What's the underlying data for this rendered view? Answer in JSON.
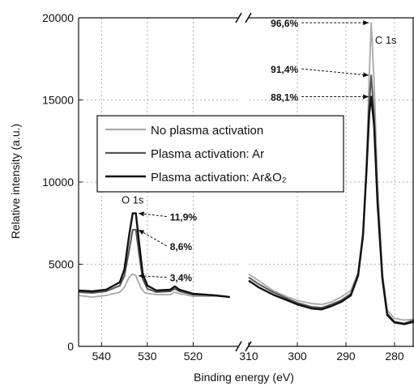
{
  "chart_data": {
    "type": "line",
    "xlabel": "Binding energy (eV)",
    "ylabel": "Relative intensity (a.u.)",
    "ylim": [
      0,
      20000
    ],
    "yticks": [
      0,
      5000,
      10000,
      15000,
      20000
    ],
    "x_axis": "reversed, broken",
    "x_segments": [
      {
        "range": [
          545,
          510
        ],
        "ticks": [
          540,
          530,
          520
        ]
      },
      {
        "range": [
          310,
          276
        ],
        "ticks": [
          310,
          300,
          290,
          280
        ]
      }
    ],
    "grid": "dashed",
    "legend_placement": "center-left",
    "series": [
      {
        "name": "No plasma activation",
        "color": "#a8a8a8",
        "segments": [
          [
            [
              545,
              3100
            ],
            [
              542,
              3000
            ],
            [
              539,
              3100
            ],
            [
              536,
              3300
            ],
            [
              535,
              3600
            ],
            [
              534,
              4200
            ],
            [
              533.2,
              4400
            ],
            [
              532.5,
              4300
            ],
            [
              531.5,
              3600
            ],
            [
              530.5,
              3250
            ],
            [
              528,
              3150
            ],
            [
              525,
              3150
            ],
            [
              524,
              3300
            ],
            [
              523,
              3200
            ],
            [
              520,
              3050
            ],
            [
              515,
              3050
            ],
            [
              512,
              3000
            ]
          ],
          [
            [
              310,
              4400
            ],
            [
              308,
              4000
            ],
            [
              305,
              3400
            ],
            [
              302,
              3000
            ],
            [
              300,
              2800
            ],
            [
              297,
              2600
            ],
            [
              295,
              2550
            ],
            [
              293,
              2700
            ],
            [
              291,
              3000
            ],
            [
              289,
              3400
            ],
            [
              287.5,
              4500
            ],
            [
              286.5,
              7000
            ],
            [
              285.8,
              11000
            ],
            [
              285.2,
              16500
            ],
            [
              284.8,
              19700
            ],
            [
              284.2,
              16000
            ],
            [
              283.5,
              10000
            ],
            [
              282.5,
              4500
            ],
            [
              281.5,
              2200
            ],
            [
              280,
              1700
            ],
            [
              278,
              1600
            ],
            [
              276,
              1650
            ]
          ]
        ]
      },
      {
        "name": "Plasma activation: Ar",
        "color": "#555555",
        "segments": [
          [
            [
              545,
              3300
            ],
            [
              542,
              3250
            ],
            [
              539,
              3350
            ],
            [
              536,
              3700
            ],
            [
              535,
              4300
            ],
            [
              534,
              5800
            ],
            [
              533.2,
              7100
            ],
            [
              532.5,
              7100
            ],
            [
              531.8,
              5600
            ],
            [
              531,
              4100
            ],
            [
              530,
              3500
            ],
            [
              528,
              3300
            ],
            [
              525,
              3350
            ],
            [
              524,
              3500
            ],
            [
              523,
              3350
            ],
            [
              520,
              3150
            ],
            [
              515,
              3100
            ],
            [
              512,
              3000
            ]
          ],
          [
            [
              310,
              4200
            ],
            [
              308,
              3800
            ],
            [
              305,
              3300
            ],
            [
              302,
              2900
            ],
            [
              300,
              2650
            ],
            [
              297,
              2400
            ],
            [
              295,
              2350
            ],
            [
              293,
              2550
            ],
            [
              291,
              2800
            ],
            [
              289,
              3200
            ],
            [
              287.5,
              4400
            ],
            [
              286.5,
              6800
            ],
            [
              285.8,
              10800
            ],
            [
              285.2,
              14800
            ],
            [
              284.8,
              16500
            ],
            [
              284.2,
              14000
            ],
            [
              283.5,
              9000
            ],
            [
              282.5,
              4200
            ],
            [
              281.5,
              2000
            ],
            [
              280,
              1500
            ],
            [
              278,
              1400
            ],
            [
              276,
              1600
            ]
          ]
        ]
      },
      {
        "name": "Plasma activation: Ar&O₂",
        "color": "#111111",
        "segments": [
          [
            [
              545,
              3400
            ],
            [
              542,
              3350
            ],
            [
              539,
              3450
            ],
            [
              536,
              3900
            ],
            [
              535,
              4700
            ],
            [
              534,
              6700
            ],
            [
              533.2,
              8100
            ],
            [
              532.5,
              8100
            ],
            [
              531.8,
              6300
            ],
            [
              531,
              4400
            ],
            [
              530,
              3700
            ],
            [
              528,
              3400
            ],
            [
              525,
              3450
            ],
            [
              524,
              3650
            ],
            [
              523,
              3450
            ],
            [
              520,
              3200
            ],
            [
              515,
              3100
            ],
            [
              512,
              3000
            ]
          ],
          [
            [
              310,
              4000
            ],
            [
              308,
              3600
            ],
            [
              305,
              3150
            ],
            [
              302,
              2800
            ],
            [
              300,
              2550
            ],
            [
              297,
              2300
            ],
            [
              295,
              2250
            ],
            [
              293,
              2450
            ],
            [
              291,
              2700
            ],
            [
              289,
              3100
            ],
            [
              287.5,
              4300
            ],
            [
              286.5,
              6700
            ],
            [
              285.8,
              10500
            ],
            [
              285.2,
              14200
            ],
            [
              284.8,
              15200
            ],
            [
              284.2,
              13400
            ],
            [
              283.5,
              8700
            ],
            [
              282.5,
              4100
            ],
            [
              281.5,
              1900
            ],
            [
              280,
              1450
            ],
            [
              278,
              1350
            ],
            [
              276,
              1500
            ]
          ]
        ]
      }
    ],
    "peak_labels": [
      {
        "text": "O 1s",
        "x": 532.5,
        "y": 8100
      },
      {
        "text": "C 1s",
        "x": 284.8,
        "y": 19700
      }
    ],
    "annotations": [
      {
        "text": "11,9%",
        "target_x": 532.5,
        "target_y": 8100
      },
      {
        "text": "8,6%",
        "target_x": 532.5,
        "target_y": 7100
      },
      {
        "text": "3,4%",
        "target_x": 532.5,
        "target_y": 4300
      },
      {
        "text": "96,6%",
        "target_x": 284.8,
        "target_y": 19700
      },
      {
        "text": "91,4%",
        "target_x": 284.8,
        "target_y": 16500
      },
      {
        "text": "88,1%",
        "target_x": 284.8,
        "target_y": 15200
      }
    ]
  }
}
